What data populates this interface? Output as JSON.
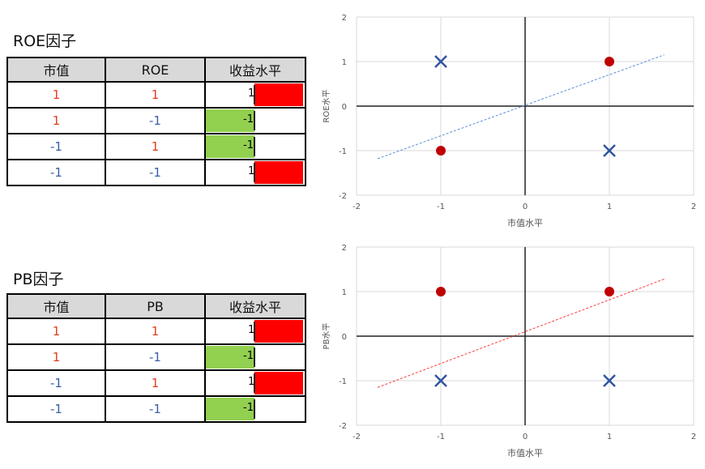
{
  "roe_section": {
    "title": "ROE因子",
    "headers": [
      "市值",
      "ROE",
      "收益水平"
    ],
    "rows": [
      {
        "a": "1",
        "b": "1",
        "ret": 1
      },
      {
        "a": "1",
        "b": "-1",
        "ret": -1
      },
      {
        "a": "-1",
        "b": "1",
        "ret": -1
      },
      {
        "a": "-1",
        "b": "-1",
        "ret": 1
      }
    ],
    "ret_labels": [
      "1",
      "-1",
      "-1",
      "1"
    ]
  },
  "pb_section": {
    "title": "PB因子",
    "headers": [
      "市值",
      "PB",
      "收益水平"
    ],
    "rows": [
      {
        "a": "1",
        "b": "1",
        "ret": 1
      },
      {
        "a": "1",
        "b": "-1",
        "ret": -1
      },
      {
        "a": "-1",
        "b": "1",
        "ret": 1
      },
      {
        "a": "-1",
        "b": "-1",
        "ret": -1
      }
    ],
    "ret_labels": [
      "1",
      "-1",
      "1",
      "-1"
    ]
  },
  "colors": {
    "positive_bar": "#ff0000",
    "negative_bar": "#92d050",
    "positive_text": "#e04020",
    "negative_text": "#3a5fa8",
    "circle_marker": "#c00000",
    "x_marker": "#2f55a4",
    "roe_trendline": "#5b8fd6",
    "pb_trendline": "#ff3b3b"
  },
  "chart_data": [
    {
      "type": "scatter",
      "xlabel": "市值水平",
      "ylabel": "ROE水平",
      "xlim": [
        -2,
        2
      ],
      "ylim": [
        -2,
        2
      ],
      "xticks": [
        "-2",
        "-1",
        "0",
        "1",
        "2"
      ],
      "yticks": [
        "-2",
        "-1",
        "0",
        "1",
        "2"
      ],
      "series": [
        {
          "marker": "circle",
          "points": [
            [
              1,
              1
            ],
            [
              -1,
              -1
            ]
          ]
        },
        {
          "marker": "x",
          "points": [
            [
              -1,
              1
            ],
            [
              1,
              -1
            ]
          ]
        }
      ],
      "trendline": {
        "style": "dashed",
        "points": [
          [
            -1.75,
            -1.18
          ],
          [
            1.65,
            1.15
          ]
        ]
      }
    },
    {
      "type": "scatter",
      "xlabel": "市值水平",
      "ylabel": "PB水平",
      "xlim": [
        -2,
        2
      ],
      "ylim": [
        -2,
        2
      ],
      "xticks": [
        "-2",
        "-1",
        "0",
        "1",
        "2"
      ],
      "yticks": [
        "-2",
        "-1",
        "0",
        "1",
        "2"
      ],
      "series": [
        {
          "marker": "circle",
          "points": [
            [
              -1,
              1
            ],
            [
              1,
              1
            ]
          ]
        },
        {
          "marker": "x",
          "points": [
            [
              -1,
              -1
            ],
            [
              1,
              -1
            ]
          ]
        }
      ],
      "trendline": {
        "style": "dashed",
        "points": [
          [
            -1.75,
            -1.15
          ],
          [
            1.65,
            1.28
          ]
        ]
      }
    }
  ]
}
